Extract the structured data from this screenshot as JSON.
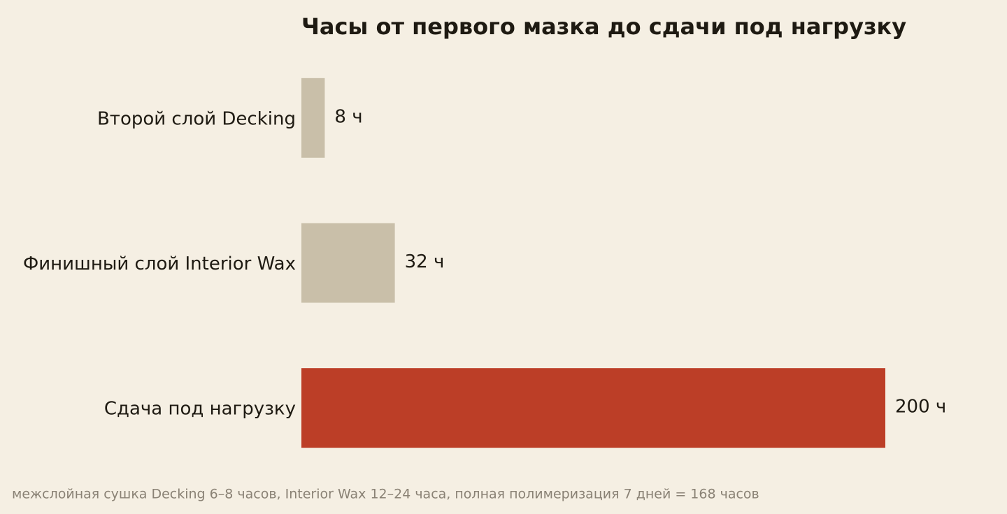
{
  "chart_data": {
    "type": "bar",
    "orientation": "horizontal",
    "title": "Часы от первого мазка до сдачи под нагрузку",
    "categories": [
      "Второй слой Decking",
      "Финишный слой Interior Wax",
      "Сдача под нагрузку"
    ],
    "values": [
      8,
      32,
      200
    ],
    "value_labels": [
      "8 ч",
      "32 ч",
      "200 ч"
    ],
    "colors": [
      "#c9bfa9",
      "#c9bfa9",
      "#bc3e27"
    ],
    "note": "межслойная сушка Decking 6–8 часов, Interior Wax 12–24 часа, полная полимеризация 7 дней = 168 часов"
  }
}
